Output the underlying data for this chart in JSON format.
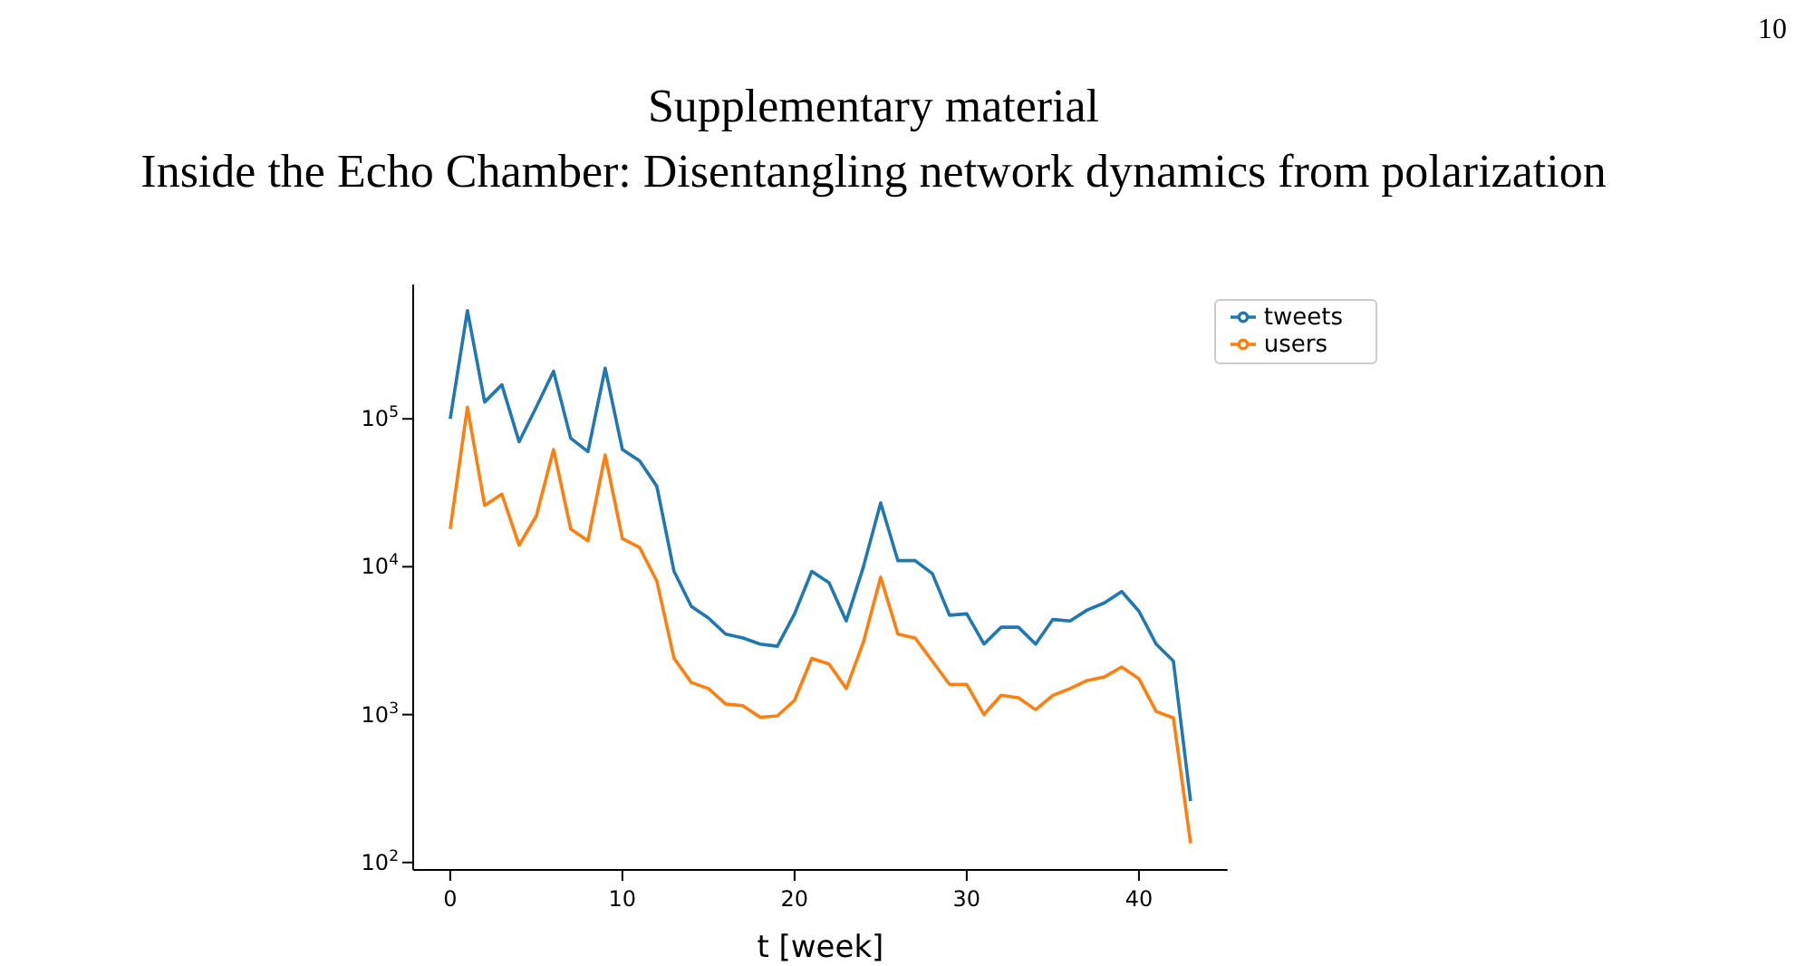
{
  "chart_data": {
    "type": "line",
    "title": "Supplementary material",
    "subtitle": "Inside the Echo Chamber: Disentangling network dynamics from polarization",
    "annotations": [
      "10"
    ],
    "xlabel": "t [week]",
    "x": [
      0,
      1,
      2,
      3,
      4,
      5,
      6,
      7,
      8,
      9,
      10,
      11,
      12,
      13,
      14,
      15,
      16,
      17,
      18,
      19,
      20,
      21,
      22,
      23,
      24,
      25,
      26,
      27,
      28,
      29,
      30,
      31,
      32,
      33,
      34,
      35,
      36,
      37,
      38,
      39,
      40,
      41,
      42,
      43
    ],
    "series": [
      {
        "name": "tweets",
        "color": "#1f77b4",
        "values": [
          100000,
          540000,
          130000,
          170000,
          70000,
          120000,
          210000,
          74000,
          60000,
          220000,
          62000,
          52000,
          35000,
          9300,
          5400,
          4500,
          3500,
          3300,
          3000,
          2900,
          4800,
          9300,
          7800,
          4300,
          10000,
          27000,
          11000,
          11000,
          9000,
          4700,
          4800,
          3000,
          3900,
          3900,
          3000,
          4400,
          4300,
          5100,
          5700,
          6800,
          5000,
          3000,
          2300,
          260
        ]
      },
      {
        "name": "users",
        "color": "#ff7f0e",
        "values": [
          18000,
          120000,
          26000,
          31000,
          14000,
          22000,
          62000,
          18000,
          15000,
          57000,
          15500,
          13500,
          8000,
          2400,
          1650,
          1500,
          1180,
          1150,
          960,
          980,
          1250,
          2400,
          2200,
          1500,
          3100,
          8500,
          3500,
          3300,
          2300,
          1600,
          1600,
          1000,
          1350,
          1300,
          1080,
          1350,
          1500,
          1700,
          1800,
          2100,
          1750,
          1050,
          950,
          135
        ]
      }
    ],
    "xlim": [
      -2.15,
      45.15
    ],
    "xticks": [
      0,
      10,
      20,
      30,
      40
    ],
    "ylim": [
      89,
      810000
    ],
    "yticks": [
      {
        "value": 100,
        "label": "10$^{2}$"
      },
      {
        "value": 1000,
        "label": "10$^{3}$"
      },
      {
        "value": 10000,
        "label": "10$^{4}$"
      },
      {
        "value": 100000,
        "label": "10$^{5}$"
      }
    ],
    "log": "y",
    "grid": false,
    "legend": "top right",
    "marker": "none",
    "line_style": "solid"
  }
}
